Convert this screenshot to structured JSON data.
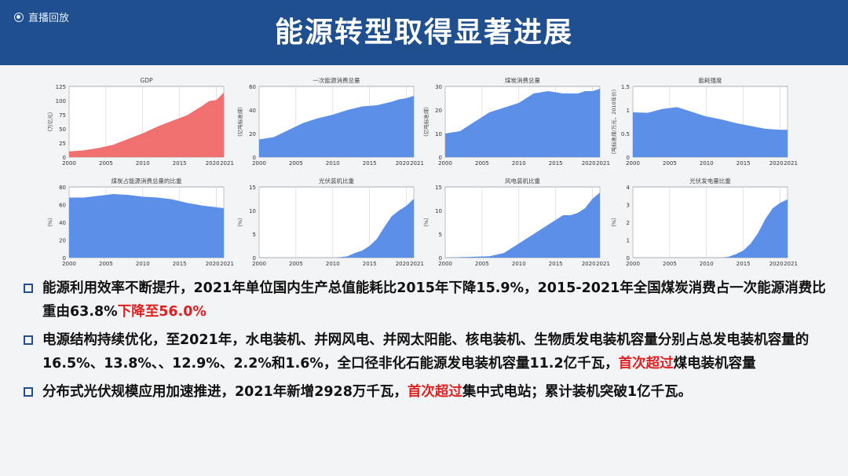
{
  "header": {
    "title": "能源转型取得显著进展",
    "live_label": "直播回放"
  },
  "chart_data": [
    {
      "type": "area",
      "title": "GDP",
      "ylabel": "（万亿元）",
      "x": [
        2000,
        2002,
        2004,
        2006,
        2008,
        2010,
        2012,
        2014,
        2016,
        2018,
        2019,
        2020,
        2021
      ],
      "values": [
        10,
        12,
        16,
        22,
        32,
        42,
        54,
        64,
        74,
        90,
        99,
        101,
        114
      ],
      "ylim": [
        0,
        125
      ],
      "yticks": [
        0,
        25,
        50,
        75,
        100,
        125
      ],
      "xticks": [
        "2000",
        "2005",
        "2010",
        "2015",
        "2020",
        "2021"
      ],
      "color": "#f07070"
    },
    {
      "type": "area",
      "title": "一次能源消费总量",
      "ylabel": "（亿吨标准煤）",
      "x": [
        2000,
        2002,
        2004,
        2006,
        2008,
        2010,
        2012,
        2014,
        2016,
        2018,
        2019,
        2020,
        2021
      ],
      "values": [
        15,
        17,
        23,
        29,
        33,
        36,
        40,
        43,
        44,
        47,
        49,
        50,
        52
      ],
      "ylim": [
        0,
        60
      ],
      "yticks": [
        0,
        20,
        40,
        60
      ],
      "xticks": [
        "2000",
        "2005",
        "2010",
        "2015",
        "2020",
        "2021"
      ],
      "color": "#5b8fe8"
    },
    {
      "type": "area",
      "title": "煤炭消费总量",
      "ylabel": "（亿吨标准煤）",
      "x": [
        2000,
        2002,
        2004,
        2006,
        2008,
        2010,
        2012,
        2014,
        2016,
        2018,
        2019,
        2020,
        2021
      ],
      "values": [
        10,
        11,
        15,
        19,
        21,
        23,
        27,
        28,
        27,
        27,
        28,
        28,
        29
      ],
      "ylim": [
        0,
        30
      ],
      "yticks": [
        0,
        10,
        20,
        30
      ],
      "xticks": [
        "2000",
        "2005",
        "2010",
        "2015",
        "2020",
        "2021"
      ],
      "color": "#5b8fe8"
    },
    {
      "type": "area",
      "title": "能耗强度",
      "ylabel": "（吨标准煤/万元，2010年价）",
      "x": [
        2000,
        2002,
        2004,
        2006,
        2008,
        2010,
        2012,
        2014,
        2016,
        2018,
        2019,
        2020,
        2021
      ],
      "values": [
        0.95,
        0.94,
        1.02,
        1.06,
        0.96,
        0.86,
        0.8,
        0.72,
        0.66,
        0.6,
        0.59,
        0.58,
        0.58
      ],
      "ylim": [
        0,
        1.5
      ],
      "yticks": [
        0,
        0.5,
        1,
        1.5
      ],
      "ytick_labels": [
        "0",
        "0.5",
        "1",
        "1.5"
      ],
      "xticks": [
        "2000",
        "2005",
        "2010",
        "2015",
        "2020",
        "2021"
      ],
      "color": "#5b8fe8"
    },
    {
      "type": "area",
      "title": "煤炭占能源消费总量的比重",
      "ylabel": "（%）",
      "x": [
        2000,
        2002,
        2004,
        2006,
        2008,
        2010,
        2012,
        2014,
        2016,
        2018,
        2019,
        2020,
        2021
      ],
      "values": [
        68,
        68,
        70,
        72,
        71,
        69,
        68,
        66,
        62,
        59,
        58,
        57,
        56
      ],
      "ylim": [
        0,
        80
      ],
      "yticks": [
        0,
        20,
        40,
        60,
        80
      ],
      "xticks": [
        "2000",
        "2005",
        "2010",
        "2015",
        "2020",
        "2021"
      ],
      "color": "#5b8fe8"
    },
    {
      "type": "area",
      "title": "光伏装机比重",
      "ylabel": "（%）",
      "x": [
        2000,
        2008,
        2010,
        2011,
        2012,
        2013,
        2014,
        2015,
        2016,
        2017,
        2018,
        2019,
        2020,
        2021
      ],
      "values": [
        0,
        0,
        0,
        0.1,
        0.3,
        1.0,
        1.5,
        2.5,
        4,
        6.5,
        8.8,
        10,
        11,
        12.5
      ],
      "ylim": [
        0,
        15
      ],
      "yticks": [
        0,
        5,
        10,
        15
      ],
      "xticks": [
        "2000",
        "2005",
        "2010",
        "2015",
        "2020",
        "2021"
      ],
      "color": "#5b8fe8"
    },
    {
      "type": "area",
      "title": "风电装机比重",
      "ylabel": "（%）",
      "x": [
        2000,
        2006,
        2008,
        2010,
        2012,
        2014,
        2016,
        2017,
        2018,
        2019,
        2020,
        2021
      ],
      "values": [
        0,
        0.3,
        1,
        3,
        5,
        7,
        9,
        9,
        9.5,
        10.5,
        12.5,
        13.8
      ],
      "ylim": [
        0,
        15
      ],
      "yticks": [
        0,
        5,
        10,
        15
      ],
      "xticks": [
        "2000",
        "2005",
        "2010",
        "2015",
        "2020",
        "2021"
      ],
      "color": "#5b8fe8"
    },
    {
      "type": "area",
      "title": "光伏发电量比重",
      "ylabel": "（%）",
      "x": [
        2000,
        2010,
        2012,
        2013,
        2014,
        2015,
        2016,
        2017,
        2018,
        2019,
        2020,
        2021
      ],
      "values": [
        0,
        0,
        0,
        0.05,
        0.2,
        0.4,
        0.8,
        1.4,
        2.2,
        2.8,
        3.1,
        3.3
      ],
      "ylim": [
        0,
        4
      ],
      "yticks": [
        0,
        1,
        2,
        3,
        4
      ],
      "xticks": [
        "2000",
        "2005",
        "2010",
        "2015",
        "2020",
        "2021"
      ],
      "color": "#5b8fe8"
    }
  ],
  "bullets": [
    {
      "segments": [
        {
          "text": "能源利用效率不断提升，2021年单位国内生产总值能耗比2015年下降15.9%，2015-2021年全国煤炭消费占一次能源消费比重由63.8%",
          "red": false
        },
        {
          "text": "下降至56.0%",
          "red": true
        }
      ]
    },
    {
      "segments": [
        {
          "text": "电源结构持续优化，至2021年，水电装机、并网风电、并网太阳能、核电装机、生物质发电装机容量分别占总发电装机容量的16.5%、13.8%、、12.9%、2.2%和1.6%，全口径非化石能源发电装机容量11.2亿千瓦，",
          "red": false
        },
        {
          "text": "首次超过",
          "red": true
        },
        {
          "text": "煤电装机容量",
          "red": false
        }
      ]
    },
    {
      "segments": [
        {
          "text": "分布式光伏规模应用加速推进，2021年新增2928万千瓦，",
          "red": false
        },
        {
          "text": "首次超过",
          "red": true
        },
        {
          "text": "集中式电站；累计装机突破1亿千瓦。",
          "red": false
        }
      ]
    }
  ]
}
